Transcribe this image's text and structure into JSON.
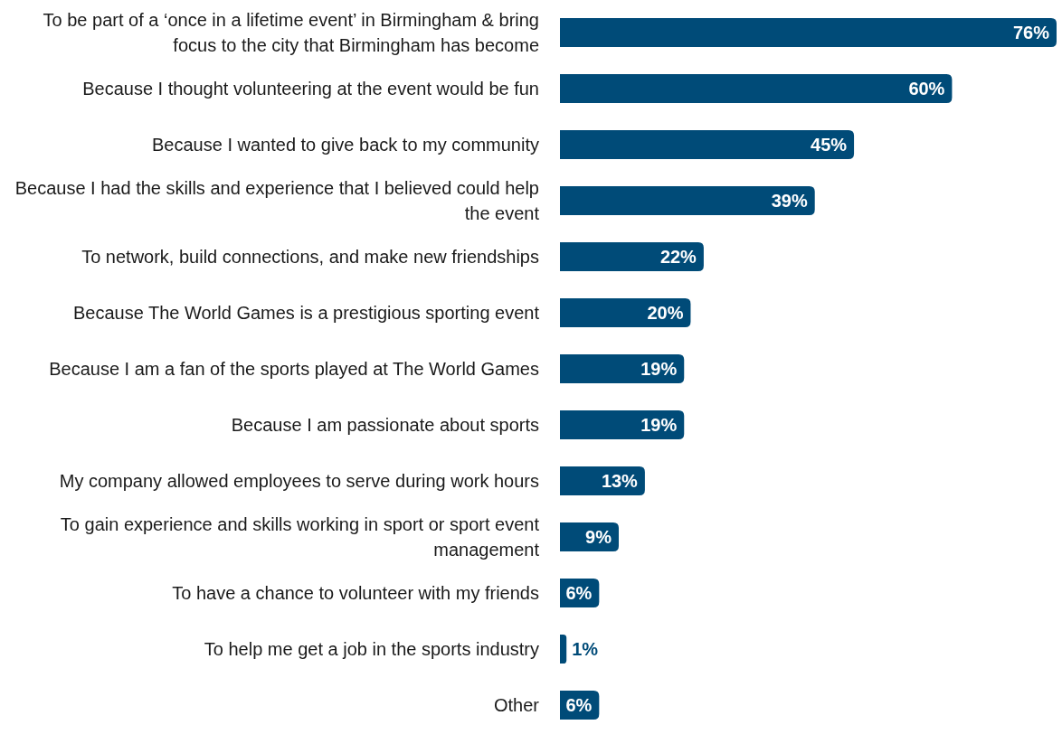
{
  "chart_data": {
    "type": "bar",
    "orientation": "horizontal",
    "categories": [
      "To be part of a ‘once in a lifetime event’ in Birmingham & bring focus to the city that Birmingham has become",
      "Because I thought volunteering at the event would be fun",
      "Because I wanted to give back to my community",
      "Because I had the skills and experience that I believed could help the event",
      "To network, build connections, and make new friendships",
      "Because The World Games is a prestigious sporting event",
      "Because I am a fan of the sports played at The World Games",
      "Because I am passionate about sports",
      "My company allowed employees to serve during work hours",
      "To gain experience and skills working in sport or sport event management",
      "To have a chance to volunteer with my friends",
      "To help me get a job in the sports industry",
      "Other"
    ],
    "values": [
      76,
      60,
      45,
      39,
      22,
      20,
      19,
      19,
      13,
      9,
      6,
      1,
      6
    ],
    "value_labels": [
      "76%",
      "60%",
      "45%",
      "39%",
      "22%",
      "20%",
      "19%",
      "19%",
      "13%",
      "9%",
      "6%",
      "1%",
      "6%"
    ],
    "color": "#004b78"
  }
}
